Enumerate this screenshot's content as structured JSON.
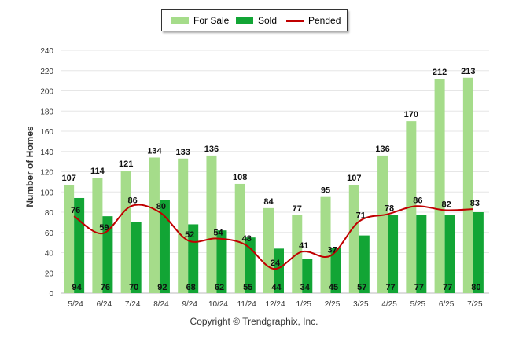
{
  "colors": {
    "for_sale": "#a5dc8a",
    "sold": "#12a535",
    "pended": "#c00000"
  },
  "legend": {
    "for_sale": "For Sale",
    "sold": "Sold",
    "pended": "Pended"
  },
  "footer": "Copyright © Trendgraphix, Inc.",
  "chart_data": {
    "type": "bar",
    "ylabel": "Number of Homes",
    "ylim": [
      0,
      240
    ],
    "yticks": [
      0,
      20,
      40,
      60,
      80,
      100,
      120,
      140,
      160,
      180,
      200,
      220,
      240
    ],
    "grid": true,
    "legend_position": "top-center",
    "categories": [
      "5/24",
      "6/24",
      "7/24",
      "8/24",
      "9/24",
      "10/24",
      "11/24",
      "12/24",
      "1/25",
      "2/25",
      "3/25",
      "4/25",
      "5/25",
      "6/25",
      "7/25"
    ],
    "series": [
      {
        "name": "For Sale",
        "type": "bar",
        "values": [
          107,
          114,
          121,
          134,
          133,
          136,
          108,
          84,
          77,
          95,
          107,
          136,
          170,
          212,
          213
        ]
      },
      {
        "name": "Sold",
        "type": "bar",
        "values": [
          94,
          76,
          70,
          92,
          68,
          62,
          55,
          44,
          34,
          45,
          57,
          77,
          77,
          77,
          80
        ]
      },
      {
        "name": "Pended",
        "type": "line",
        "values": [
          76,
          59,
          86,
          80,
          52,
          54,
          48,
          24,
          41,
          37,
          71,
          78,
          86,
          82,
          83
        ]
      }
    ]
  }
}
